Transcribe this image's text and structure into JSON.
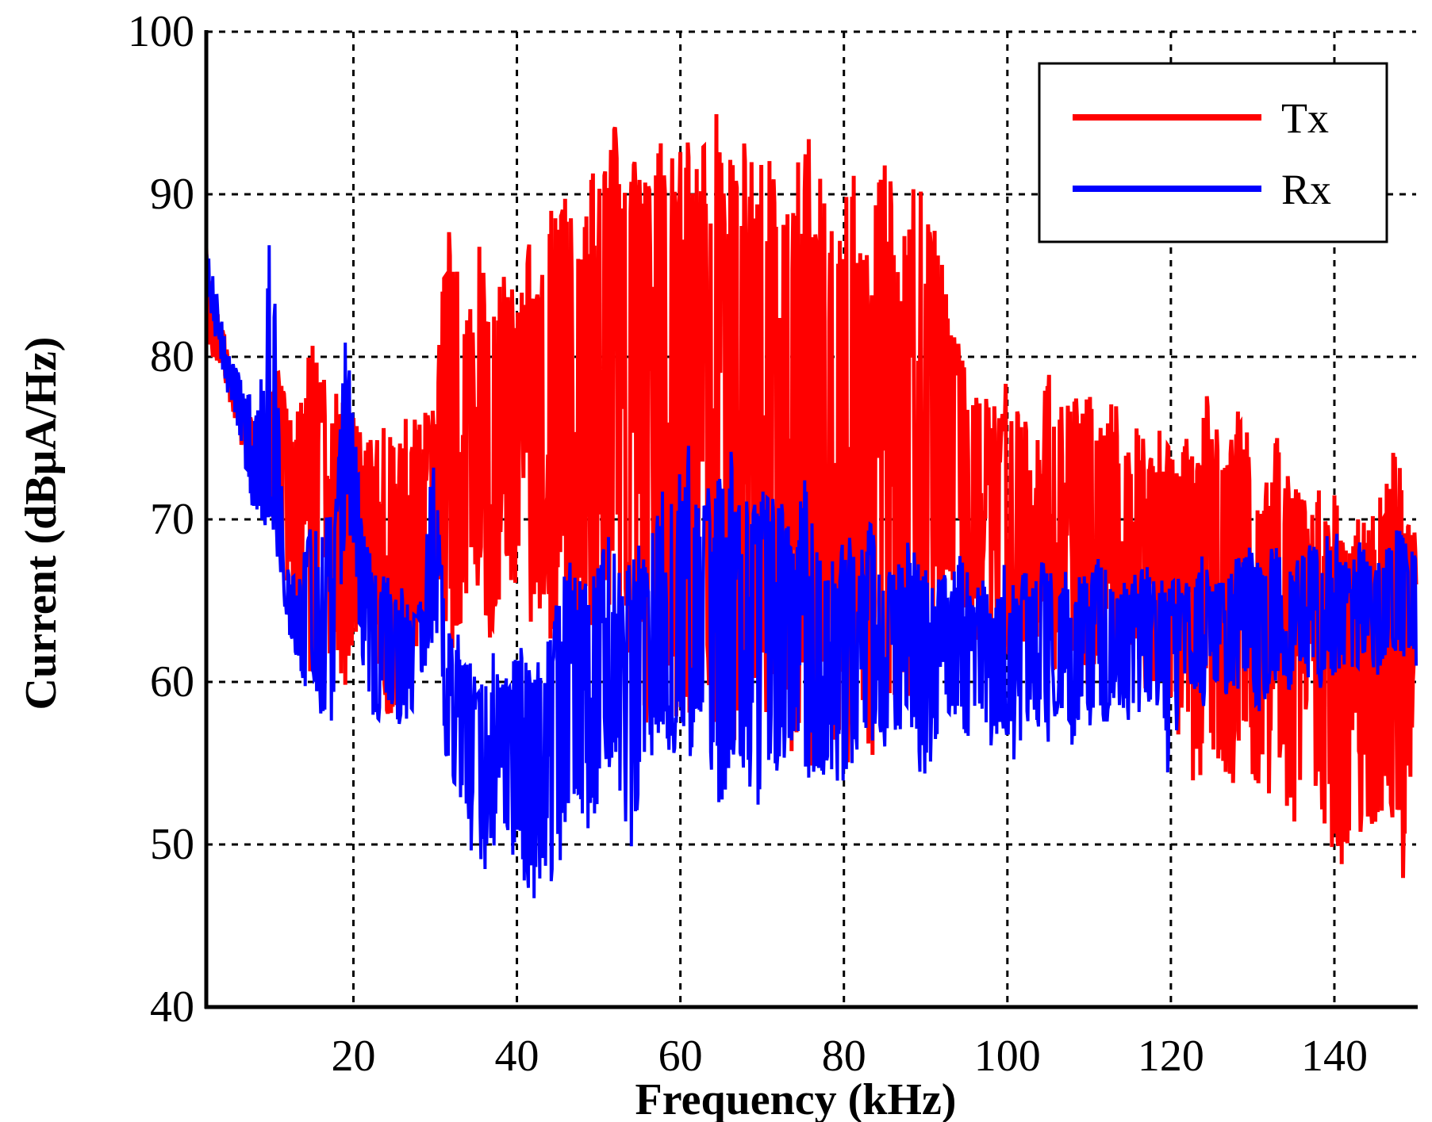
{
  "chart_data": {
    "type": "line",
    "xlabel": "Frequency (kHz)",
    "ylabel": "Current (dBμA/Hz)",
    "xlim": [
      2,
      150
    ],
    "ylim": [
      40,
      100
    ],
    "xticks": [
      20,
      40,
      60,
      80,
      100,
      120,
      140
    ],
    "yticks": [
      40,
      50,
      60,
      70,
      80,
      90,
      100
    ],
    "grid": true,
    "legend_position": "top-right",
    "series": [
      {
        "name": "Tx",
        "color": "#ff0000",
        "x": [
          2,
          3,
          4,
          5,
          6,
          7,
          8,
          9,
          10,
          11,
          12,
          13,
          14,
          15,
          16,
          17,
          18,
          19,
          20,
          21,
          22,
          23,
          24,
          25,
          26,
          27,
          28,
          29,
          30,
          31,
          32,
          33,
          34,
          35,
          36,
          37,
          38,
          39,
          40,
          41,
          42,
          43,
          44,
          45,
          46,
          47,
          48,
          49,
          50,
          51,
          52,
          53,
          54,
          55,
          56,
          57,
          58,
          59,
          60,
          61,
          62,
          63,
          64,
          65,
          66,
          67,
          68,
          69,
          70,
          71,
          72,
          73,
          74,
          75,
          76,
          77,
          78,
          79,
          80,
          81,
          82,
          83,
          84,
          85,
          86,
          87,
          88,
          89,
          90,
          91,
          92,
          93,
          94,
          95,
          96,
          97,
          98,
          99,
          100,
          101,
          102,
          103,
          104,
          105,
          106,
          107,
          108,
          109,
          110,
          111,
          112,
          113,
          114,
          115,
          116,
          117,
          118,
          119,
          120,
          121,
          122,
          123,
          124,
          125,
          126,
          127,
          128,
          129,
          130,
          131,
          132,
          133,
          134,
          135,
          136,
          137,
          138,
          139,
          140,
          141,
          142,
          143,
          144,
          145,
          146,
          147,
          148,
          149,
          150
        ],
        "upper": [
          87,
          84,
          82,
          79,
          78,
          77,
          76,
          76,
          78,
          80,
          78,
          77,
          79,
          81,
          79,
          78,
          80,
          79,
          77,
          76,
          75,
          75,
          76,
          75,
          76,
          77,
          76,
          77,
          77,
          85,
          90,
          86,
          84,
          90,
          86,
          84,
          86,
          84,
          85,
          86,
          88,
          87,
          89,
          90,
          91,
          88,
          90,
          92,
          91,
          93,
          95,
          91,
          93,
          92,
          91,
          94,
          94,
          93,
          95,
          94,
          94,
          93,
          95,
          96,
          94,
          93,
          95,
          94,
          93,
          92,
          94,
          91,
          92,
          93,
          94,
          91,
          92,
          93,
          90,
          92,
          89,
          88,
          92,
          93,
          90,
          89,
          91,
          92,
          94,
          88,
          86,
          82,
          81,
          79,
          78,
          79,
          77,
          77,
          79,
          77,
          76,
          78,
          77,
          79,
          78,
          77,
          78,
          79,
          80,
          77,
          76,
          78,
          76,
          76,
          77,
          75,
          75,
          76,
          74,
          75,
          77,
          76,
          78,
          77,
          76,
          75,
          77,
          76,
          74,
          73,
          74,
          75,
          73,
          72,
          72,
          71,
          72,
          71,
          72,
          71,
          70,
          71,
          70,
          71,
          72,
          75,
          74,
          71,
          69
        ],
        "lower": [
          80,
          80,
          79,
          77,
          75,
          73,
          72,
          71,
          70,
          68,
          66,
          64,
          61,
          60,
          62,
          59,
          61,
          58,
          60,
          66,
          64,
          60,
          58,
          57,
          59,
          60,
          62,
          64,
          66,
          64,
          62,
          61,
          63,
          65,
          64,
          62,
          64,
          65,
          66,
          63,
          62,
          64,
          62,
          63,
          65,
          64,
          62,
          60,
          62,
          61,
          60,
          61,
          60,
          59,
          57,
          59,
          60,
          58,
          56,
          57,
          59,
          58,
          57,
          59,
          57,
          56,
          58,
          57,
          59,
          57,
          55,
          54,
          56,
          55,
          53,
          55,
          57,
          55,
          54,
          56,
          58,
          55,
          53,
          56,
          59,
          60,
          59,
          60,
          62,
          63,
          64,
          65,
          64,
          63,
          62,
          63,
          62,
          64,
          62,
          60,
          61,
          62,
          63,
          61,
          60,
          62,
          60,
          59,
          60,
          61,
          62,
          60,
          61,
          60,
          61,
          59,
          60,
          59,
          58,
          56,
          55,
          53,
          54,
          52,
          55,
          54,
          53,
          56,
          54,
          52,
          53,
          55,
          52,
          50,
          51,
          53,
          52,
          50,
          48,
          46,
          47,
          50,
          48,
          50,
          52,
          49,
          48,
          47,
          66
        ]
      },
      {
        "name": "Rx",
        "color": "#0000ff",
        "x": [
          2,
          3,
          4,
          5,
          6,
          7,
          8,
          9,
          10,
          11,
          12,
          13,
          14,
          15,
          16,
          17,
          18,
          19,
          20,
          21,
          22,
          23,
          24,
          25,
          26,
          27,
          28,
          29,
          30,
          31,
          32,
          33,
          34,
          35,
          36,
          37,
          38,
          39,
          40,
          41,
          42,
          43,
          44,
          45,
          46,
          47,
          48,
          49,
          50,
          51,
          52,
          53,
          54,
          55,
          56,
          57,
          58,
          59,
          60,
          61,
          62,
          63,
          64,
          65,
          66,
          67,
          68,
          69,
          70,
          71,
          72,
          73,
          74,
          75,
          76,
          77,
          78,
          79,
          80,
          81,
          82,
          83,
          84,
          85,
          86,
          87,
          88,
          89,
          90,
          91,
          92,
          93,
          94,
          95,
          96,
          97,
          98,
          99,
          100,
          101,
          102,
          103,
          104,
          105,
          106,
          107,
          108,
          109,
          110,
          111,
          112,
          113,
          114,
          115,
          116,
          117,
          118,
          119,
          120,
          121,
          122,
          123,
          124,
          125,
          126,
          127,
          128,
          129,
          130,
          131,
          132,
          133,
          134,
          135,
          136,
          137,
          138,
          139,
          140,
          141,
          142,
          143,
          144,
          145,
          146,
          147,
          148,
          149,
          150
        ],
        "upper": [
          87,
          85,
          82,
          80,
          79,
          78,
          77,
          80,
          91,
          74,
          68,
          66,
          68,
          70,
          70,
          71,
          72,
          82,
          77,
          70,
          68,
          66,
          67,
          65,
          66,
          64,
          65,
          70,
          75,
          66,
          64,
          63,
          62,
          60,
          61,
          62,
          60,
          61,
          62,
          63,
          61,
          62,
          64,
          65,
          68,
          67,
          66,
          68,
          69,
          70,
          68,
          66,
          68,
          69,
          67,
          71,
          74,
          72,
          73,
          75,
          72,
          73,
          72,
          74,
          75,
          71,
          72,
          73,
          72,
          71,
          72,
          70,
          69,
          73,
          70,
          68,
          69,
          67,
          70,
          69,
          68,
          70,
          69,
          67,
          68,
          67,
          69,
          68,
          67,
          66,
          67,
          66,
          68,
          67,
          66,
          67,
          65,
          66,
          68,
          66,
          67,
          66,
          68,
          67,
          66,
          67,
          65,
          67,
          66,
          68,
          67,
          66,
          67,
          66,
          67,
          68,
          66,
          67,
          66,
          67,
          66,
          67,
          68,
          67,
          66,
          67,
          68,
          69,
          68,
          67,
          68,
          69,
          68,
          67,
          68,
          69,
          68,
          69,
          70,
          68,
          67,
          69,
          68,
          67,
          68,
          69,
          70,
          68,
          69
        ],
        "lower": [
          85,
          81,
          79,
          77,
          75,
          72,
          70,
          69,
          70,
          66,
          63,
          61,
          59,
          60,
          58,
          57,
          59,
          70,
          68,
          61,
          58,
          57,
          59,
          58,
          57,
          58,
          59,
          61,
          63,
          56,
          54,
          53,
          50,
          49,
          48,
          49,
          52,
          50,
          48,
          47,
          46,
          47,
          45,
          48,
          50,
          52,
          50,
          51,
          52,
          54,
          55,
          51,
          48,
          53,
          55,
          54,
          57,
          55,
          56,
          54,
          56,
          55,
          53,
          52,
          54,
          53,
          55,
          52,
          51,
          54,
          53,
          55,
          56,
          54,
          52,
          53,
          55,
          54,
          52,
          55,
          56,
          57,
          55,
          56,
          57,
          56,
          57,
          55,
          53,
          56,
          57,
          58,
          57,
          56,
          57,
          58,
          56,
          57,
          56,
          55,
          57,
          58,
          57,
          56,
          58,
          57,
          56,
          58,
          57,
          58,
          57,
          59,
          58,
          57,
          58,
          59,
          58,
          57,
          52,
          58,
          60,
          59,
          58,
          59,
          60,
          59,
          58,
          60,
          59,
          58,
          59,
          60,
          59,
          60,
          61,
          60,
          59,
          61,
          60,
          61,
          60,
          61,
          62,
          60,
          61,
          62,
          61,
          62,
          61
        ]
      }
    ]
  }
}
